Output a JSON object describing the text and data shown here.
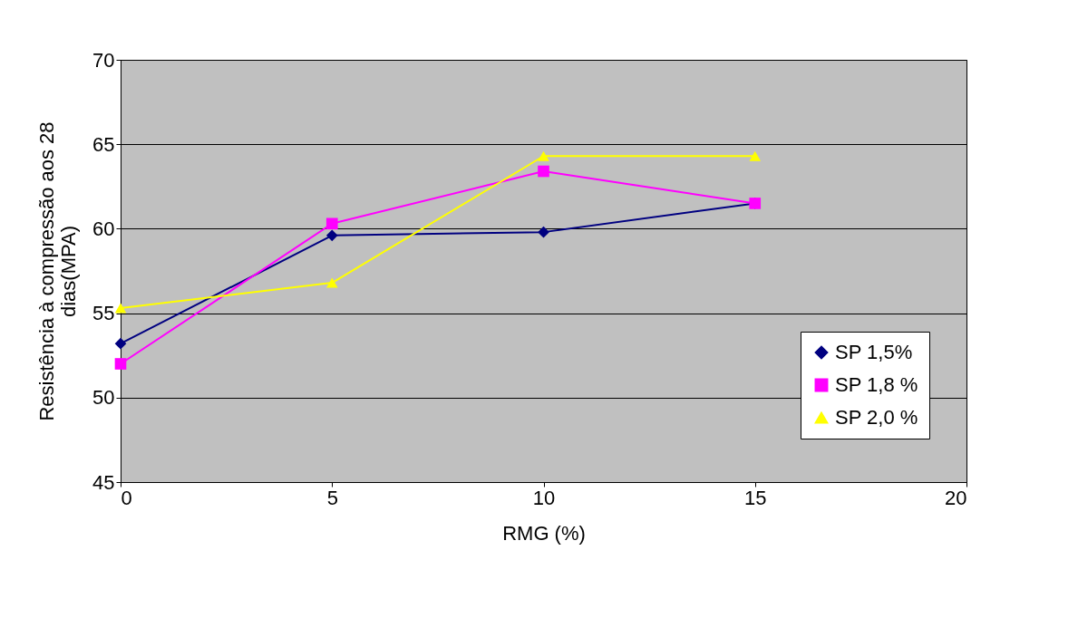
{
  "chart_data": {
    "type": "line",
    "xlabel": "RMG (%)",
    "ylabel": "Resistência à compressão aos 28 dias(MPA)",
    "x": [
      0,
      5,
      10,
      15
    ],
    "xlim": [
      0,
      20
    ],
    "xticks": [
      0,
      5,
      10,
      15,
      20
    ],
    "ylim": [
      45,
      70
    ],
    "yticks": [
      45,
      50,
      55,
      60,
      65,
      70
    ],
    "grid": "y",
    "legend": "bottom right",
    "line_style": "solid",
    "series": [
      {
        "name": "SP 1,5%",
        "color": "#000080",
        "marker": "diamond",
        "values": [
          53.2,
          59.6,
          59.8,
          61.5
        ]
      },
      {
        "name": "SP 1,8 %",
        "color": "#ff00ff",
        "marker": "square",
        "values": [
          52.0,
          60.3,
          63.4,
          61.5
        ]
      },
      {
        "name": "SP 2,0 %",
        "color": "#ffff00",
        "marker": "triangle",
        "values": [
          55.3,
          56.8,
          64.3,
          64.3
        ]
      }
    ]
  }
}
